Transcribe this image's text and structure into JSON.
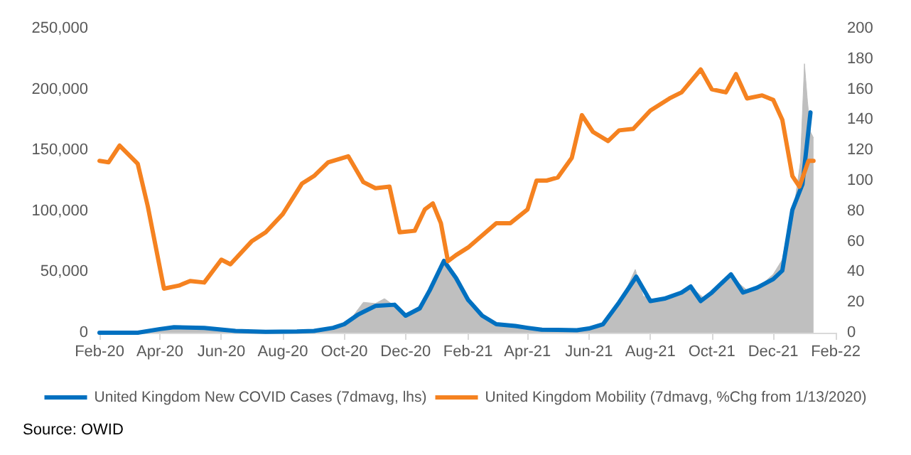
{
  "chart_data": {
    "type": "line",
    "annotations": [
      "Source: OWID"
    ],
    "legend": "bottom",
    "grid": false,
    "marker": "none",
    "line_style": "solid",
    "xlim": [
      "2020-02-01",
      "2022-02-01"
    ],
    "xticks": [
      {
        "value": "2020-02-01",
        "label": "Feb-20"
      },
      {
        "value": "2020-04-01",
        "label": "Apr-20"
      },
      {
        "value": "2020-06-01",
        "label": "Jun-20"
      },
      {
        "value": "2020-08-01",
        "label": "Aug-20"
      },
      {
        "value": "2020-10-01",
        "label": "Oct-20"
      },
      {
        "value": "2020-12-01",
        "label": "Dec-20"
      },
      {
        "value": "2021-02-01",
        "label": "Feb-21"
      },
      {
        "value": "2021-04-01",
        "label": "Apr-21"
      },
      {
        "value": "2021-06-01",
        "label": "Jun-21"
      },
      {
        "value": "2021-08-01",
        "label": "Aug-21"
      },
      {
        "value": "2021-10-01",
        "label": "Oct-21"
      },
      {
        "value": "2021-12-01",
        "label": "Dec-21"
      },
      {
        "value": "2022-02-01",
        "label": "Feb-22"
      }
    ],
    "ylim": [
      0,
      250000
    ],
    "yticks": [
      0,
      {
        "value": 50000,
        "label": "50,000"
      },
      {
        "value": 100000,
        "label": "100,000"
      },
      {
        "value": 150000,
        "label": "150,000"
      },
      {
        "value": 200000,
        "label": "200,000"
      },
      {
        "value": 250000,
        "label": "250,000"
      }
    ],
    "y2lim": [
      0,
      200
    ],
    "y2ticks": [
      0,
      20,
      40,
      60,
      80,
      100,
      120,
      140,
      160,
      180,
      200
    ],
    "series": [
      {
        "type": "area",
        "color": "#bfbfbf",
        "x": [
          "2020-03-01",
          "2020-03-20",
          "2020-04-10",
          "2020-05-10",
          "2020-06-10",
          "2020-07-15",
          "2020-08-15",
          "2020-09-15",
          "2020-10-01",
          "2020-10-10",
          "2020-10-20",
          "2020-11-01",
          "2020-11-10",
          "2020-11-20",
          "2020-12-01",
          "2020-12-15",
          "2020-12-29",
          "2021-01-08",
          "2021-01-20",
          "2021-02-01",
          "2021-02-15",
          "2021-03-01",
          "2021-04-01",
          "2021-05-01",
          "2021-06-01",
          "2021-06-20",
          "2021-07-05",
          "2021-07-17",
          "2021-07-25",
          "2021-08-10",
          "2021-09-01",
          "2021-09-10",
          "2021-09-25",
          "2021-10-10",
          "2021-10-20",
          "2021-11-05",
          "2021-11-20",
          "2021-12-01",
          "2021-12-10",
          "2021-12-17",
          "2021-12-22",
          "2021-12-28",
          "2022-01-01",
          "2022-01-04",
          "2022-01-07",
          "2022-01-10"
        ],
        "values": [
          0,
          2000,
          5000,
          4000,
          1500,
          700,
          1000,
          3000,
          8000,
          14000,
          25000,
          24000,
          28000,
          22000,
          15000,
          22000,
          38000,
          58000,
          42000,
          24000,
          12000,
          6000,
          3000,
          2000,
          4000,
          10000,
          30000,
          52000,
          30000,
          26000,
          34000,
          38000,
          27000,
          40000,
          46000,
          35000,
          40000,
          48000,
          60000,
          90000,
          105000,
          140000,
          221000,
          190000,
          165000,
          160000
        ]
      },
      {
        "name": "United Kingdom New COVID Cases (7dmavg, lhs)",
        "color": "#0070c0",
        "x": [
          "2020-02-01",
          "2020-03-10",
          "2020-04-01",
          "2020-04-15",
          "2020-05-15",
          "2020-06-15",
          "2020-07-15",
          "2020-08-15",
          "2020-09-01",
          "2020-09-20",
          "2020-10-01",
          "2020-10-15",
          "2020-11-01",
          "2020-11-20",
          "2020-12-01",
          "2020-12-15",
          "2020-12-25",
          "2021-01-08",
          "2021-01-20",
          "2021-02-01",
          "2021-02-15",
          "2021-03-01",
          "2021-03-20",
          "2021-04-01",
          "2021-04-15",
          "2021-05-01",
          "2021-05-20",
          "2021-06-01",
          "2021-06-15",
          "2021-07-01",
          "2021-07-18",
          "2021-08-01",
          "2021-08-15",
          "2021-09-01",
          "2021-09-10",
          "2021-09-20",
          "2021-10-01",
          "2021-10-20",
          "2021-11-01",
          "2021-11-15",
          "2021-12-01",
          "2021-12-10",
          "2021-12-20",
          "2021-12-30",
          "2022-01-07"
        ],
        "values": [
          0,
          0,
          3000,
          4500,
          4000,
          1500,
          700,
          1000,
          1500,
          4000,
          7000,
          15000,
          22000,
          23000,
          14000,
          20000,
          35000,
          59000,
          45000,
          27000,
          14000,
          7000,
          5500,
          4000,
          2500,
          2300,
          2000,
          3500,
          7000,
          25000,
          46000,
          26000,
          28000,
          33000,
          38000,
          26000,
          33000,
          48000,
          33000,
          37000,
          44000,
          51000,
          101000,
          122000,
          181000
        ]
      },
      {
        "name": "United Kingdom Mobility (7dmavg, %Chg from 1/13/2020)",
        "color": "#f58220",
        "axis": "y2",
        "x": [
          "2020-02-01",
          "2020-02-10",
          "2020-02-21",
          "2020-03-10",
          "2020-03-20",
          "2020-04-05",
          "2020-04-20",
          "2020-05-01",
          "2020-05-15",
          "2020-06-01",
          "2020-06-10",
          "2020-07-01",
          "2020-07-15",
          "2020-08-01",
          "2020-08-20",
          "2020-09-01",
          "2020-09-15",
          "2020-10-05",
          "2020-10-20",
          "2020-11-01",
          "2020-11-15",
          "2020-11-25",
          "2020-12-10",
          "2020-12-20",
          "2020-12-28",
          "2021-01-05",
          "2021-01-12",
          "2021-01-20",
          "2021-02-01",
          "2021-03-01",
          "2021-03-15",
          "2021-04-01",
          "2021-04-10",
          "2021-04-20",
          "2021-05-01",
          "2021-05-15",
          "2021-05-25",
          "2021-06-05",
          "2021-06-20",
          "2021-07-01",
          "2021-07-15",
          "2021-08-01",
          "2021-08-20",
          "2021-09-01",
          "2021-09-20",
          "2021-10-01",
          "2021-10-15",
          "2021-10-25",
          "2021-11-05",
          "2021-11-20",
          "2021-12-01",
          "2021-12-10",
          "2021-12-20",
          "2021-12-27",
          "2022-01-05",
          "2022-01-10"
        ],
        "values": [
          113,
          112,
          123,
          111,
          83,
          29,
          31,
          34,
          33,
          48,
          45,
          60,
          66,
          78,
          98,
          103,
          112,
          116,
          99,
          95,
          96,
          66,
          67,
          81,
          85,
          72,
          47,
          51,
          56,
          72,
          72,
          81,
          100,
          100,
          102,
          115,
          143,
          132,
          126,
          133,
          134,
          146,
          154,
          158,
          173,
          160,
          158,
          170,
          154,
          156,
          153,
          140,
          103,
          96,
          113,
          113
        ]
      }
    ]
  }
}
